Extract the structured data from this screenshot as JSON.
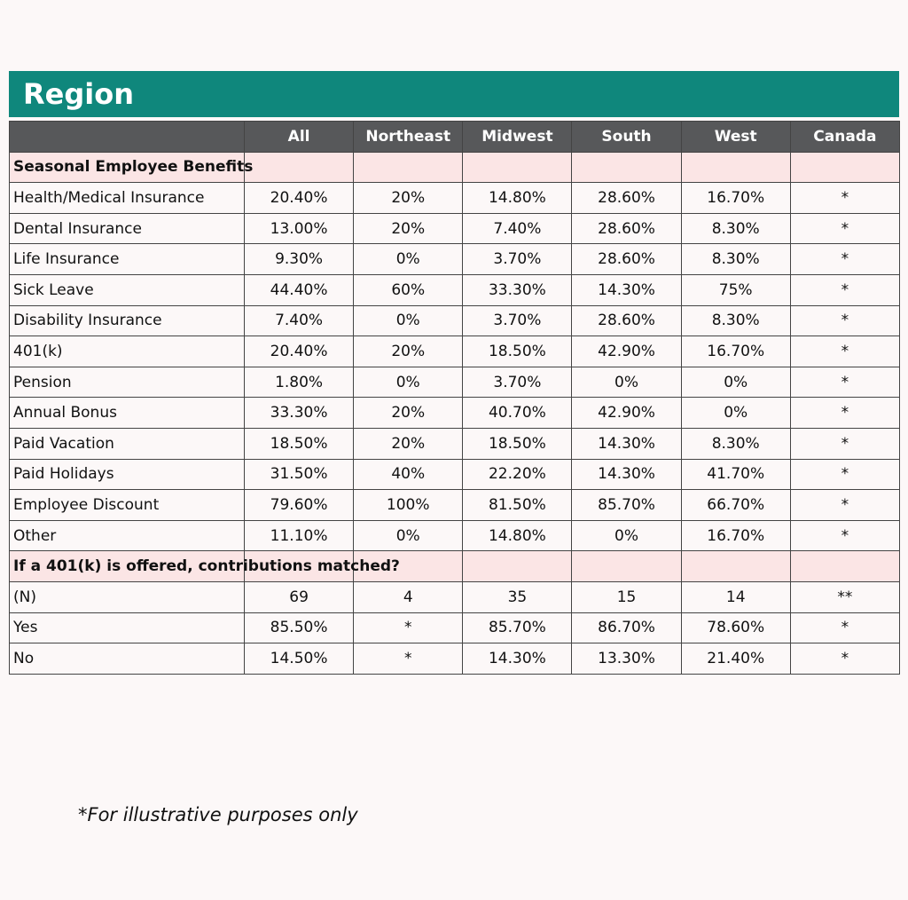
{
  "title": "Region",
  "table": {
    "columns": [
      "All",
      "Northeast",
      "Midwest",
      "South",
      "West",
      "Canada"
    ],
    "sections": [
      {
        "title": "Seasonal Employee Benefits",
        "rows": [
          [
            "Health/Medical Insurance",
            "20.40%",
            "20%",
            "14.80%",
            "28.60%",
            "16.70%",
            "*"
          ],
          [
            "Dental Insurance",
            "13.00%",
            "20%",
            "7.40%",
            "28.60%",
            "8.30%",
            "*"
          ],
          [
            "Life Insurance",
            "9.30%",
            "0%",
            "3.70%",
            "28.60%",
            "8.30%",
            "*"
          ],
          [
            "Sick Leave",
            "44.40%",
            "60%",
            "33.30%",
            "14.30%",
            "75%",
            "*"
          ],
          [
            "Disability Insurance",
            "7.40%",
            "0%",
            "3.70%",
            "28.60%",
            "8.30%",
            "*"
          ],
          [
            "401(k)",
            "20.40%",
            "20%",
            "18.50%",
            "42.90%",
            "16.70%",
            "*"
          ],
          [
            "Pension",
            "1.80%",
            "0%",
            "3.70%",
            "0%",
            "0%",
            "*"
          ],
          [
            "Annual Bonus",
            "33.30%",
            "20%",
            "40.70%",
            "42.90%",
            "0%",
            "*"
          ],
          [
            "Paid Vacation",
            "18.50%",
            "20%",
            "18.50%",
            "14.30%",
            "8.30%",
            "*"
          ],
          [
            "Paid Holidays",
            "31.50%",
            "40%",
            "22.20%",
            "14.30%",
            "41.70%",
            "*"
          ],
          [
            "Employee Discount",
            "79.60%",
            "100%",
            "81.50%",
            "85.70%",
            "66.70%",
            "*"
          ],
          [
            "Other",
            "11.10%",
            "0%",
            "14.80%",
            "0%",
            "16.70%",
            "*"
          ]
        ]
      },
      {
        "title": "If a 401(k) is offered, contributions matched?",
        "rows": [
          [
            "(N)",
            "69",
            "4",
            "35",
            "15",
            "14",
            "**"
          ],
          [
            "Yes",
            "85.50%",
            "*",
            "85.70%",
            "86.70%",
            "78.60%",
            "*"
          ],
          [
            "No",
            "14.50%",
            "*",
            "14.30%",
            "13.30%",
            "21.40%",
            "*"
          ]
        ]
      }
    ]
  },
  "footnote": "*For illustrative purposes only"
}
